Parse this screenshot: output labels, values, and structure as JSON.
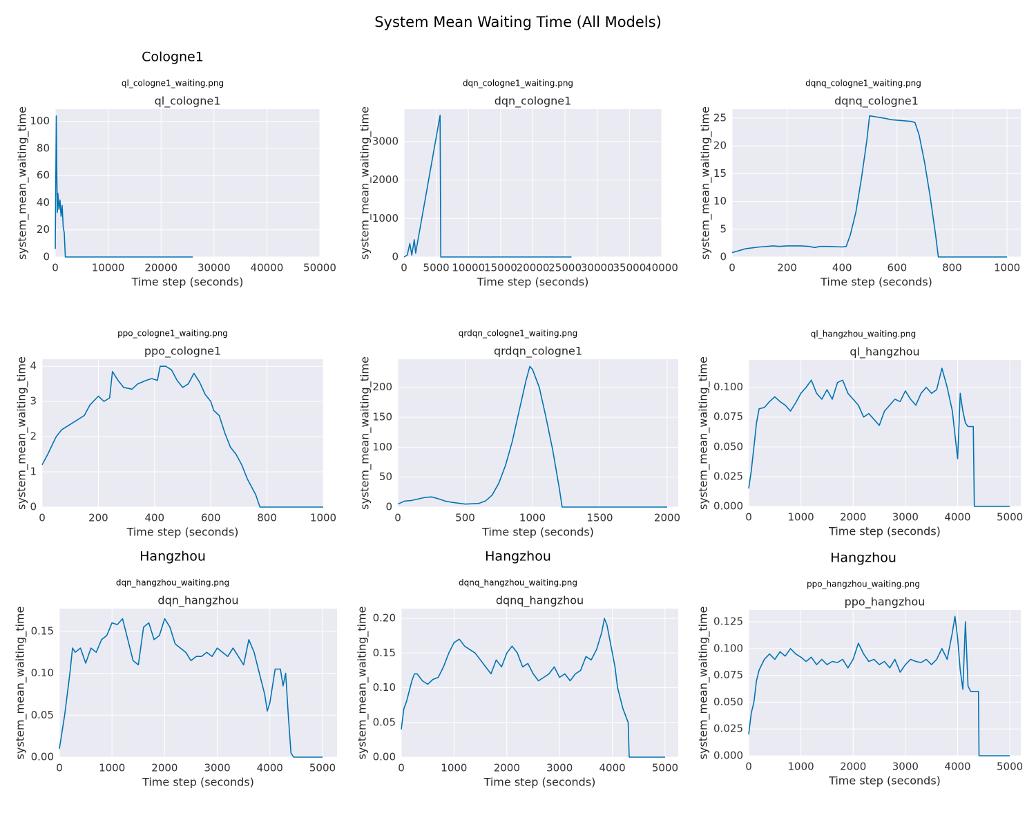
{
  "title": "System Mean Waiting Time (All Models)",
  "chart_data": [
    {
      "type": "line",
      "section": "Cologne1",
      "caption": "ql_cologne1_waiting.png",
      "title": "ql_cologne1",
      "x_label": "Time step (seconds)",
      "y_label": "system_mean_waiting_time",
      "grid": true,
      "xlim": [
        0,
        50000
      ],
      "ylim": [
        0,
        109
      ],
      "xticks": [
        0,
        10000,
        20000,
        30000,
        40000,
        50000
      ],
      "yticks": [
        0,
        20,
        40,
        60,
        80,
        100
      ],
      "series": [
        {
          "name": "ql_cologne1",
          "color": "#0173b2",
          "x": [
            0,
            200,
            300,
            400,
            500,
            700,
            900,
            1100,
            1300,
            1500,
            1700,
            1900,
            26000
          ],
          "values": [
            6,
            104,
            60,
            33,
            47,
            35,
            42,
            30,
            38,
            22,
            18,
            0,
            0
          ]
        }
      ]
    },
    {
      "type": "line",
      "caption": "dqn_cologne1_waiting.png",
      "title": "dqn_cologne1",
      "x_label": "Time step (seconds)",
      "y_label": "system_mean_waiting_time",
      "grid": true,
      "xlim": [
        0,
        40000
      ],
      "ylim": [
        0,
        3840
      ],
      "xticks": [
        0,
        5000,
        10000,
        15000,
        20000,
        25000,
        30000,
        35000,
        40000
      ],
      "yticks": [
        0,
        1000,
        2000,
        3000
      ],
      "series": [
        {
          "name": "dqn_cologne1",
          "color": "#0173b2",
          "x": [
            0,
            500,
            900,
            1200,
            1600,
            1800,
            5600,
            5700,
            26000
          ],
          "values": [
            0,
            50,
            350,
            50,
            450,
            100,
            3680,
            0,
            0
          ]
        }
      ]
    },
    {
      "type": "line",
      "caption": "dqnq_cologne1_waiting.png",
      "title": "dqnq_cologne1",
      "x_label": "Time step (seconds)",
      "y_label": "system_mean_waiting_time",
      "grid": true,
      "xlim": [
        0,
        1050
      ],
      "ylim": [
        0,
        26.6
      ],
      "xticks": [
        0,
        200,
        400,
        600,
        800,
        1000
      ],
      "yticks": [
        0,
        5,
        10,
        15,
        20,
        25
      ],
      "series": [
        {
          "name": "dqnq_cologne1",
          "color": "#0173b2",
          "x": [
            0,
            30,
            50,
            100,
            150,
            170,
            200,
            250,
            280,
            300,
            320,
            350,
            400,
            415,
            430,
            450,
            470,
            490,
            500,
            550,
            580,
            650,
            665,
            680,
            700,
            720,
            740,
            750,
            1000
          ],
          "values": [
            0.8,
            1.2,
            1.5,
            1.8,
            2.0,
            1.9,
            2.0,
            2.0,
            1.9,
            1.7,
            1.9,
            1.9,
            1.8,
            1.9,
            4,
            8,
            14,
            21,
            25.4,
            25.0,
            24.7,
            24.4,
            24.2,
            22,
            17,
            11,
            4,
            0,
            0
          ]
        }
      ]
    },
    {
      "type": "line",
      "caption": "ppo_cologne1_waiting.png",
      "title": "ppo_cologne1",
      "x_label": "Time step (seconds)",
      "y_label": "system_mean_waiting_time",
      "grid": true,
      "xlim": [
        0,
        1000
      ],
      "ylim": [
        0,
        4.2
      ],
      "xticks": [
        0,
        200,
        400,
        600,
        800,
        1000
      ],
      "yticks": [
        0,
        1,
        2,
        3,
        4
      ],
      "series": [
        {
          "name": "ppo_cologne1",
          "color": "#0173b2",
          "x": [
            0,
            20,
            50,
            70,
            100,
            150,
            170,
            200,
            220,
            240,
            250,
            270,
            290,
            320,
            340,
            370,
            390,
            410,
            420,
            440,
            460,
            480,
            500,
            520,
            540,
            560,
            580,
            600,
            610,
            630,
            650,
            670,
            690,
            710,
            730,
            760,
            775,
            1000
          ],
          "values": [
            1.2,
            1.5,
            2.0,
            2.2,
            2.35,
            2.6,
            2.9,
            3.15,
            3.0,
            3.1,
            3.85,
            3.6,
            3.4,
            3.35,
            3.5,
            3.6,
            3.65,
            3.6,
            4.0,
            4.0,
            3.9,
            3.6,
            3.4,
            3.5,
            3.8,
            3.55,
            3.2,
            3.0,
            2.75,
            2.6,
            2.1,
            1.7,
            1.5,
            1.2,
            0.8,
            0.35,
            0,
            0
          ]
        }
      ]
    },
    {
      "type": "line",
      "caption": "qrdqn_cologne1_waiting.png",
      "title": "qrdqn_cologne1",
      "x_label": "Time step (seconds)",
      "y_label": "system_mean_waiting_time",
      "grid": true,
      "xlim": [
        0,
        2082
      ],
      "ylim": [
        0,
        247
      ],
      "xticks": [
        0,
        500,
        1000,
        1500,
        2000
      ],
      "yticks": [
        0,
        50,
        100,
        150,
        200
      ],
      "series": [
        {
          "name": "qrdqn_cologne1",
          "color": "#0173b2",
          "x": [
            0,
            50,
            100,
            200,
            250,
            300,
            350,
            400,
            500,
            600,
            650,
            700,
            750,
            800,
            850,
            900,
            950,
            980,
            1000,
            1050,
            1100,
            1150,
            1200,
            1220,
            2000
          ],
          "values": [
            5,
            10,
            11,
            16,
            17,
            14,
            10,
            8,
            5,
            6,
            10,
            20,
            40,
            70,
            110,
            160,
            210,
            235,
            230,
            200,
            150,
            95,
            30,
            0,
            0
          ]
        }
      ]
    },
    {
      "type": "line",
      "caption": "ql_hangzhou_waiting.png",
      "title": "ql_hangzhou",
      "x_label": "Time step (seconds)",
      "y_label": "system_mean_waiting_time",
      "grid": true,
      "xlim": [
        0,
        5210
      ],
      "ylim": [
        0,
        0.123
      ],
      "xticks": [
        0,
        1000,
        2000,
        3000,
        4000,
        5000
      ],
      "yticks": [
        {
          "value": 0,
          "label": "0.000"
        },
        {
          "value": 0.025,
          "label": "0.025"
        },
        {
          "value": 0.05,
          "label": "0.050"
        },
        {
          "value": 0.075,
          "label": "0.075"
        },
        {
          "value": 0.1,
          "label": "0.100"
        }
      ],
      "series": [
        {
          "name": "ql_hangzhou",
          "color": "#0173b2",
          "x": [
            0,
            50,
            100,
            150,
            200,
            300,
            400,
            500,
            600,
            700,
            800,
            900,
            1000,
            1100,
            1200,
            1300,
            1400,
            1500,
            1600,
            1700,
            1800,
            1900,
            2000,
            2100,
            2200,
            2300,
            2400,
            2500,
            2600,
            2700,
            2800,
            2900,
            3000,
            3100,
            3200,
            3300,
            3400,
            3500,
            3600,
            3700,
            3800,
            3900,
            4000,
            4020,
            4050,
            4100,
            4150,
            4200,
            4300,
            4320,
            5000
          ],
          "values": [
            0.015,
            0.03,
            0.05,
            0.07,
            0.082,
            0.083,
            0.088,
            0.092,
            0.088,
            0.085,
            0.08,
            0.087,
            0.095,
            0.1,
            0.106,
            0.095,
            0.09,
            0.098,
            0.09,
            0.104,
            0.106,
            0.095,
            0.09,
            0.085,
            0.075,
            0.078,
            0.073,
            0.068,
            0.08,
            0.085,
            0.09,
            0.088,
            0.097,
            0.09,
            0.085,
            0.095,
            0.1,
            0.095,
            0.098,
            0.116,
            0.1,
            0.08,
            0.04,
            0.06,
            0.095,
            0.08,
            0.07,
            0.067,
            0.067,
            0,
            0
          ]
        }
      ]
    },
    {
      "type": "line",
      "section": "Hangzhou",
      "caption": "dqn_hangzhou_waiting.png",
      "title": "dqn_hangzhou",
      "x_label": "Time step (seconds)",
      "y_label": "system_mean_waiting_time",
      "grid": true,
      "xlim": [
        0,
        5276
      ],
      "ylim": [
        0,
        0.177
      ],
      "xticks": [
        0,
        1000,
        2000,
        3000,
        4000,
        5000
      ],
      "yticks": [
        {
          "value": 0,
          "label": "0.00"
        },
        {
          "value": 0.05,
          "label": "0.05"
        },
        {
          "value": 0.1,
          "label": "0.10"
        },
        {
          "value": 0.15,
          "label": "0.15"
        }
      ],
      "series": [
        {
          "name": "dqn_hangzhou",
          "color": "#0173b2",
          "x": [
            0,
            100,
            200,
            250,
            300,
            400,
            500,
            600,
            700,
            800,
            900,
            1000,
            1100,
            1200,
            1300,
            1400,
            1500,
            1600,
            1700,
            1800,
            1900,
            2000,
            2100,
            2200,
            2300,
            2400,
            2500,
            2600,
            2700,
            2800,
            2900,
            3000,
            3100,
            3200,
            3300,
            3400,
            3500,
            3600,
            3700,
            3800,
            3900,
            3950,
            4000,
            4050,
            4100,
            4200,
            4250,
            4300,
            4350,
            4400,
            4450,
            5000
          ],
          "values": [
            0.01,
            0.05,
            0.1,
            0.13,
            0.125,
            0.13,
            0.112,
            0.13,
            0.125,
            0.14,
            0.145,
            0.16,
            0.158,
            0.165,
            0.14,
            0.115,
            0.11,
            0.155,
            0.16,
            0.14,
            0.145,
            0.165,
            0.155,
            0.135,
            0.13,
            0.125,
            0.115,
            0.12,
            0.12,
            0.125,
            0.12,
            0.13,
            0.125,
            0.12,
            0.13,
            0.12,
            0.11,
            0.14,
            0.125,
            0.1,
            0.075,
            0.055,
            0.065,
            0.085,
            0.105,
            0.105,
            0.085,
            0.1,
            0.05,
            0.005,
            0,
            0
          ]
        }
      ]
    },
    {
      "type": "line",
      "section": "Hangzhou",
      "caption": "dqnq_hangzhou_waiting.png",
      "title": "dqnq_hangzhou",
      "x_label": "Time step (seconds)",
      "y_label": "system_mean_waiting_time",
      "grid": true,
      "xlim": [
        0,
        5249
      ],
      "ylim": [
        0,
        0.214
      ],
      "xticks": [
        0,
        1000,
        2000,
        3000,
        4000,
        5000
      ],
      "yticks": [
        {
          "value": 0,
          "label": "0.00"
        },
        {
          "value": 0.05,
          "label": "0.05"
        },
        {
          "value": 0.1,
          "label": "0.10"
        },
        {
          "value": 0.15,
          "label": "0.15"
        },
        {
          "value": 0.2,
          "label": "0.20"
        }
      ],
      "series": [
        {
          "name": "dqnq_hangzhou",
          "color": "#0173b2",
          "x": [
            0,
            50,
            100,
            200,
            250,
            300,
            400,
            500,
            600,
            700,
            800,
            900,
            1000,
            1100,
            1200,
            1300,
            1400,
            1500,
            1600,
            1700,
            1800,
            1900,
            2000,
            2100,
            2200,
            2300,
            2400,
            2500,
            2600,
            2700,
            2800,
            2900,
            3000,
            3100,
            3200,
            3300,
            3400,
            3500,
            3600,
            3700,
            3800,
            3850,
            3900,
            4000,
            4050,
            4100,
            4200,
            4300,
            4320,
            5000
          ],
          "values": [
            0.04,
            0.07,
            0.08,
            0.11,
            0.12,
            0.12,
            0.11,
            0.105,
            0.112,
            0.115,
            0.13,
            0.15,
            0.165,
            0.17,
            0.16,
            0.155,
            0.15,
            0.14,
            0.13,
            0.12,
            0.14,
            0.13,
            0.15,
            0.16,
            0.15,
            0.13,
            0.135,
            0.12,
            0.11,
            0.115,
            0.12,
            0.13,
            0.115,
            0.12,
            0.11,
            0.12,
            0.125,
            0.145,
            0.14,
            0.155,
            0.18,
            0.2,
            0.19,
            0.15,
            0.13,
            0.1,
            0.07,
            0.05,
            0,
            0
          ]
        }
      ]
    },
    {
      "type": "line",
      "section": "Hangzhou",
      "caption": "ppo_hangzhou_waiting.png",
      "title": "ppo_hangzhou",
      "x_label": "Time step (seconds)",
      "y_label": "system_mean_waiting_time",
      "grid": true,
      "xlim": [
        0,
        5210
      ],
      "ylim": [
        0,
        0.136
      ],
      "xticks": [
        0,
        1000,
        2000,
        3000,
        4000,
        5000
      ],
      "yticks": [
        {
          "value": 0,
          "label": "0.000"
        },
        {
          "value": 0.025,
          "label": "0.025"
        },
        {
          "value": 0.05,
          "label": "0.050"
        },
        {
          "value": 0.075,
          "label": "0.075"
        },
        {
          "value": 0.1,
          "label": "0.100"
        },
        {
          "value": 0.125,
          "label": "0.125"
        }
      ],
      "series": [
        {
          "name": "ppo_hangzhou",
          "color": "#0173b2",
          "x": [
            0,
            50,
            100,
            150,
            200,
            300,
            400,
            500,
            600,
            700,
            800,
            900,
            1000,
            1100,
            1200,
            1300,
            1400,
            1500,
            1600,
            1700,
            1800,
            1900,
            2000,
            2100,
            2200,
            2300,
            2400,
            2500,
            2600,
            2700,
            2800,
            2900,
            3000,
            3100,
            3200,
            3300,
            3400,
            3500,
            3600,
            3700,
            3800,
            3900,
            3950,
            4000,
            4050,
            4100,
            4150,
            4200,
            4250,
            4400,
            4410,
            5000
          ],
          "values": [
            0.02,
            0.04,
            0.05,
            0.07,
            0.08,
            0.09,
            0.095,
            0.09,
            0.097,
            0.093,
            0.1,
            0.095,
            0.092,
            0.088,
            0.092,
            0.085,
            0.09,
            0.085,
            0.088,
            0.087,
            0.09,
            0.082,
            0.09,
            0.105,
            0.095,
            0.088,
            0.09,
            0.085,
            0.088,
            0.082,
            0.09,
            0.078,
            0.085,
            0.09,
            0.088,
            0.087,
            0.09,
            0.085,
            0.09,
            0.1,
            0.09,
            0.115,
            0.13,
            0.11,
            0.08,
            0.062,
            0.125,
            0.065,
            0.06,
            0.06,
            0,
            0
          ]
        }
      ]
    }
  ]
}
